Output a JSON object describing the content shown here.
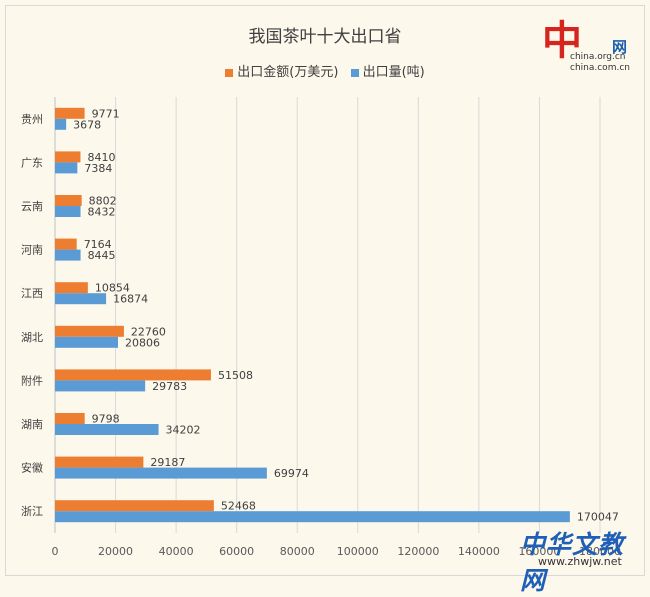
{
  "chart_data": {
    "type": "bar",
    "orientation": "horizontal",
    "title": "我国茶叶十大出口省",
    "categories": [
      "贵州",
      "广东",
      "云南",
      "河南",
      "江西",
      "湖北",
      "附件",
      "湖南",
      "安徽",
      "浙江"
    ],
    "series": [
      {
        "name": "出口金额(万美元)",
        "color": "#ed7d31",
        "values": [
          9771,
          8410,
          8802,
          7164,
          10854,
          22760,
          51508,
          9798,
          29187,
          52468
        ]
      },
      {
        "name": "出口量(吨)",
        "color": "#5b9bd5",
        "values": [
          3678,
          7384,
          8432,
          8445,
          16874,
          20806,
          29783,
          34202,
          69974,
          170047
        ]
      }
    ],
    "x_ticks": [
      0,
      20000,
      40000,
      60000,
      80000,
      100000,
      120000,
      140000,
      160000,
      180000
    ],
    "xlim": [
      0,
      180000
    ],
    "grid": "vertical",
    "legend_position": "top"
  },
  "logo": {
    "glyph": "中",
    "wang": "网",
    "url1": "china.org.cn",
    "url2": "china.com.cn"
  },
  "watermark": {
    "text": "中华文教网",
    "url": "www.zhwjw.net"
  }
}
